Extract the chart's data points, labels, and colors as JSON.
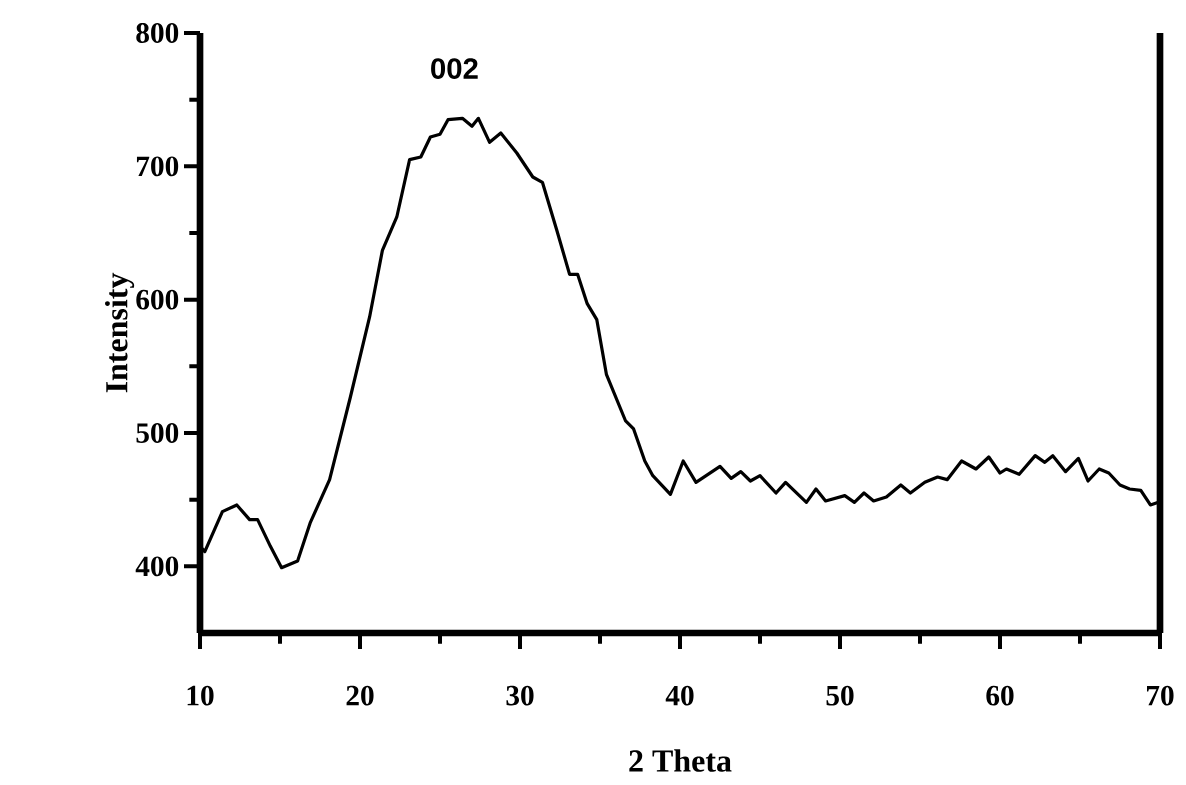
{
  "chart_data": {
    "type": "line",
    "xlabel": "2 Theta",
    "ylabel": "Intensity",
    "color": "#000000",
    "marker": "none",
    "line_style": "solid",
    "grid": false,
    "xlim": [
      10,
      70
    ],
    "xticks": [
      10,
      20,
      30,
      40,
      50,
      60,
      70
    ],
    "ylim": [
      350,
      800
    ],
    "yticks": [
      400,
      500,
      600,
      700,
      800
    ],
    "annotations": [
      {
        "text": "002",
        "x": 25.9,
        "y": 736
      }
    ],
    "x": [
      10,
      10.3,
      11.4,
      12.3,
      13.1,
      13.6,
      14.4,
      15.1,
      16.1,
      16.9,
      18.1,
      19.4,
      20.6,
      21.4,
      22.3,
      23.1,
      23.8,
      24.4,
      25.0,
      25.5,
      26.4,
      27.0,
      27.4,
      28.1,
      28.8,
      29.8,
      30.8,
      31.4,
      32.3,
      33.1,
      33.6,
      34.2,
      34.8,
      35.4,
      36.6,
      37.1,
      37.8,
      38.3,
      39.4,
      40.2,
      41.0,
      42.5,
      43.2,
      43.8,
      44.4,
      45.0,
      46.0,
      46.6,
      47.2,
      47.9,
      48.5,
      49.1,
      50.3,
      50.9,
      51.5,
      52.1,
      52.9,
      53.8,
      54.4,
      55.3,
      56.1,
      56.7,
      57.6,
      58.5,
      59.3,
      60.0,
      60.4,
      61.2,
      62.2,
      62.8,
      63.3,
      64.1,
      64.9,
      65.5,
      66.2,
      66.8,
      67.5,
      68.1,
      68.8,
      69.4,
      69.9
    ],
    "values": [
      415,
      411,
      441,
      446,
      435,
      435,
      415,
      399,
      404,
      433,
      465,
      527,
      587,
      637,
      662,
      705,
      707,
      722,
      724,
      735,
      736,
      730,
      736,
      718,
      725,
      710,
      692,
      688,
      652,
      619,
      619,
      597,
      585,
      544,
      509,
      503,
      479,
      468,
      454,
      479,
      463,
      475,
      466,
      471,
      464,
      468,
      455,
      463,
      456,
      448,
      458,
      449,
      453,
      448,
      455,
      449,
      452,
      461,
      455,
      463,
      467,
      465,
      479,
      473,
      482,
      470,
      473,
      469,
      483,
      478,
      483,
      471,
      481,
      464,
      473,
      470,
      461,
      458,
      457,
      446,
      448
    ]
  }
}
